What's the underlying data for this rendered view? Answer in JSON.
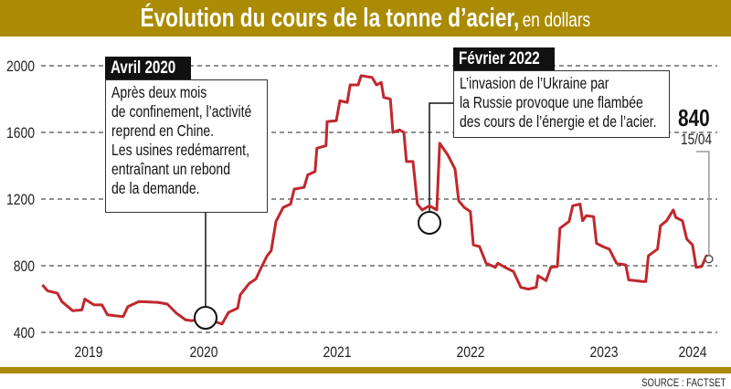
{
  "header": {
    "title": "Évolution du cours de la tonne d’acier,",
    "subtitle": "en dollars"
  },
  "colors": {
    "brand": "#ab8b03",
    "line": "#c0282d",
    "band_fill": "#dccf96"
  },
  "chart_data": {
    "type": "area",
    "title": "Évolution du cours de la tonne d’acier, en dollars",
    "xlabel": "",
    "ylabel": "",
    "ylim": [
      400,
      2000
    ],
    "yticks": [
      400,
      800,
      1200,
      1600,
      2000
    ],
    "xtick_labels": [
      "2019",
      "2020",
      "2021",
      "2022",
      "2023",
      "2024"
    ],
    "grid": "horizontal dashed",
    "shaded_years": [
      "2019",
      "2021",
      "2023"
    ],
    "series": [
      {
        "points": [
          [
            "2019-04-17",
            685
          ],
          [
            "2019-05-01",
            650
          ],
          [
            "2019-05-28",
            635
          ],
          [
            "2019-06-09",
            585
          ],
          [
            "2019-07-09",
            530
          ],
          [
            "2019-08-03",
            535
          ],
          [
            "2019-08-11",
            600
          ],
          [
            "2019-09-05",
            565
          ],
          [
            "2019-09-27",
            565
          ],
          [
            "2019-10-12",
            505
          ],
          [
            "2019-11-24",
            495
          ],
          [
            "2019-12-07",
            555
          ],
          [
            "2020-01-06",
            585
          ],
          [
            "2020-02-27",
            580
          ],
          [
            "2020-03-24",
            570
          ],
          [
            "2020-04-18",
            515
          ],
          [
            "2020-05-13",
            475
          ],
          [
            "2020-05-31",
            470
          ],
          [
            "2020-07-07",
            485
          ],
          [
            "2020-08-21",
            450
          ],
          [
            "2020-09-08",
            520
          ],
          [
            "2020-10-03",
            545
          ],
          [
            "2020-10-10",
            625
          ],
          [
            "2020-11-04",
            695
          ],
          [
            "2020-11-22",
            720
          ],
          [
            "2020-12-08",
            795
          ],
          [
            "2020-12-23",
            860
          ],
          [
            "2021-01-03",
            890
          ],
          [
            "2021-01-16",
            1065
          ],
          [
            "2021-02-05",
            1150
          ],
          [
            "2021-02-25",
            1170
          ],
          [
            "2021-03-07",
            1260
          ],
          [
            "2021-04-03",
            1270
          ],
          [
            "2021-04-13",
            1345
          ],
          [
            "2021-05-03",
            1365
          ],
          [
            "2021-05-08",
            1505
          ],
          [
            "2021-06-02",
            1520
          ],
          [
            "2021-06-05",
            1665
          ],
          [
            "2021-06-30",
            1670
          ],
          [
            "2021-07-10",
            1790
          ],
          [
            "2021-07-30",
            1780
          ],
          [
            "2021-08-07",
            1885
          ],
          [
            "2021-08-29",
            1885
          ],
          [
            "2021-09-06",
            1940
          ],
          [
            "2021-10-06",
            1930
          ],
          [
            "2021-10-18",
            1885
          ],
          [
            "2021-10-31",
            1900
          ],
          [
            "2021-11-07",
            1810
          ],
          [
            "2021-11-25",
            1800
          ],
          [
            "2021-12-02",
            1600
          ],
          [
            "2021-12-20",
            1615
          ],
          [
            "2022-01-01",
            1600
          ],
          [
            "2022-01-08",
            1425
          ],
          [
            "2022-01-26",
            1425
          ],
          [
            "2022-02-07",
            1170
          ],
          [
            "2022-02-20",
            1135
          ],
          [
            "2022-03-12",
            1160
          ],
          [
            "2022-04-01",
            1135
          ],
          [
            "2022-04-09",
            1535
          ],
          [
            "2022-05-01",
            1465
          ],
          [
            "2022-05-21",
            1380
          ],
          [
            "2022-05-31",
            1190
          ],
          [
            "2022-06-15",
            1150
          ],
          [
            "2022-07-02",
            1125
          ],
          [
            "2022-07-10",
            925
          ],
          [
            "2022-07-27",
            915
          ],
          [
            "2022-08-14",
            815
          ],
          [
            "2022-09-08",
            790
          ],
          [
            "2022-09-15",
            815
          ],
          [
            "2022-10-05",
            790
          ],
          [
            "2022-10-28",
            765
          ],
          [
            "2022-11-17",
            670
          ],
          [
            "2022-12-07",
            660
          ],
          [
            "2022-12-29",
            670
          ],
          [
            "2023-01-03",
            740
          ],
          [
            "2023-01-25",
            710
          ],
          [
            "2023-02-07",
            790
          ],
          [
            "2023-02-25",
            795
          ],
          [
            "2023-03-04",
            1025
          ],
          [
            "2023-03-29",
            1065
          ],
          [
            "2023-04-08",
            1160
          ],
          [
            "2023-04-28",
            1170
          ],
          [
            "2023-05-05",
            1070
          ],
          [
            "2023-05-15",
            1100
          ],
          [
            "2023-06-04",
            1095
          ],
          [
            "2023-06-12",
            935
          ],
          [
            "2023-06-29",
            915
          ],
          [
            "2023-07-17",
            900
          ],
          [
            "2023-08-06",
            815
          ],
          [
            "2023-08-31",
            805
          ],
          [
            "2023-09-08",
            715
          ],
          [
            "2023-10-15",
            705
          ],
          [
            "2023-10-25",
            705
          ],
          [
            "2023-11-01",
            860
          ],
          [
            "2023-11-26",
            900
          ],
          [
            "2023-12-04",
            1040
          ],
          [
            "2023-12-21",
            1070
          ],
          [
            "2024-01-08",
            1135
          ],
          [
            "2024-01-15",
            1090
          ],
          [
            "2024-02-02",
            1070
          ],
          [
            "2024-02-14",
            960
          ],
          [
            "2024-03-01",
            925
          ],
          [
            "2024-03-11",
            790
          ],
          [
            "2024-03-26",
            795
          ],
          [
            "2024-04-08",
            860
          ],
          [
            "2024-04-15",
            840
          ]
        ]
      }
    ],
    "annotations": [
      {
        "label": "Avril 2020",
        "date": "2020-04-15",
        "lines": [
          "Après deux mois",
          "de confinement, l’activité",
          "reprend en Chine.",
          "Les usines redémarrent,",
          "entraînant un rebond",
          "de la demande."
        ]
      },
      {
        "label": "Février 2022",
        "date": "2022-02-24",
        "lines": [
          "L’invasion de l’Ukraine par",
          "la Russie provoque une flambée",
          "des cours de l’énergie et de l’acier."
        ]
      }
    ],
    "last_value": {
      "value": "840",
      "date": "15/04"
    }
  },
  "source": "SOURCE : FACTSET"
}
